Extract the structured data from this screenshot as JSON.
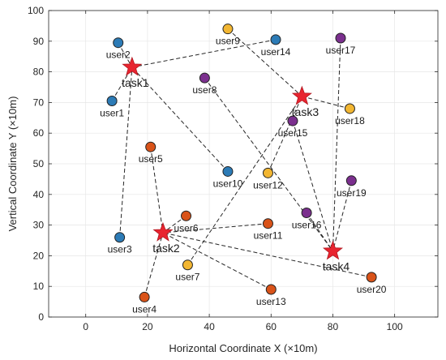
{
  "chart_data": {
    "type": "scatter",
    "xlabel": "Horizontal Coordinate X (×10m)",
    "ylabel": "Vertical Coordinate Y (×10m)",
    "xlim": [
      -12,
      114
    ],
    "ylim": [
      0,
      100
    ],
    "xticks": [
      0,
      20,
      40,
      60,
      80,
      100
    ],
    "yticks": [
      0,
      10,
      20,
      30,
      40,
      50,
      60,
      70,
      80,
      90,
      100
    ],
    "grid": true,
    "legend": "none",
    "colors": {
      "blue": "#2c7bb6",
      "yellow": "#f2b632",
      "purple": "#7b2f8e",
      "orange": "#d95319",
      "task": "#e8242f"
    },
    "tasks": [
      {
        "name": "task1",
        "x": 15,
        "y": 81.5
      },
      {
        "name": "task2",
        "x": 25,
        "y": 27.5
      },
      {
        "name": "task3",
        "x": 70,
        "y": 72
      },
      {
        "name": "task4",
        "x": 80,
        "y": 21.5
      }
    ],
    "users": [
      {
        "name": "user1",
        "x": 8.5,
        "y": 70.5,
        "color": "blue",
        "task": "task1"
      },
      {
        "name": "user2",
        "x": 10.5,
        "y": 89.5,
        "color": "blue",
        "task": "task1"
      },
      {
        "name": "user3",
        "x": 11,
        "y": 26,
        "color": "blue",
        "task": "task1"
      },
      {
        "name": "user4",
        "x": 19,
        "y": 6.5,
        "color": "orange",
        "task": "task2"
      },
      {
        "name": "user5",
        "x": 21,
        "y": 55.5,
        "color": "orange",
        "task": "task2"
      },
      {
        "name": "user6",
        "x": 32.5,
        "y": 33,
        "color": "orange",
        "task": "task2"
      },
      {
        "name": "user7",
        "x": 33,
        "y": 17,
        "color": "yellow",
        "task": "task3"
      },
      {
        "name": "user8",
        "x": 38.5,
        "y": 78,
        "color": "purple",
        "task": "task4"
      },
      {
        "name": "user9",
        "x": 46,
        "y": 94,
        "color": "yellow",
        "task": "task3"
      },
      {
        "name": "user10",
        "x": 46,
        "y": 47.5,
        "color": "blue",
        "task": "task1"
      },
      {
        "name": "user11",
        "x": 59,
        "y": 30.5,
        "color": "orange",
        "task": "task2"
      },
      {
        "name": "user12",
        "x": 59,
        "y": 47,
        "color": "yellow",
        "task": "task3"
      },
      {
        "name": "user13",
        "x": 60,
        "y": 9,
        "color": "orange",
        "task": "task2"
      },
      {
        "name": "user14",
        "x": 61.5,
        "y": 90.5,
        "color": "blue",
        "task": "task1"
      },
      {
        "name": "user15",
        "x": 67,
        "y": 64,
        "color": "purple",
        "task": "task4"
      },
      {
        "name": "user16",
        "x": 71.5,
        "y": 34,
        "color": "purple",
        "task": "task4"
      },
      {
        "name": "user17",
        "x": 82.5,
        "y": 91,
        "color": "purple",
        "task": "task4"
      },
      {
        "name": "user18",
        "x": 85.5,
        "y": 68,
        "color": "yellow",
        "task": "task3"
      },
      {
        "name": "user19",
        "x": 86,
        "y": 44.5,
        "color": "purple",
        "task": "task4"
      },
      {
        "name": "user20",
        "x": 92.5,
        "y": 13,
        "color": "orange",
        "task": "task2"
      }
    ]
  }
}
